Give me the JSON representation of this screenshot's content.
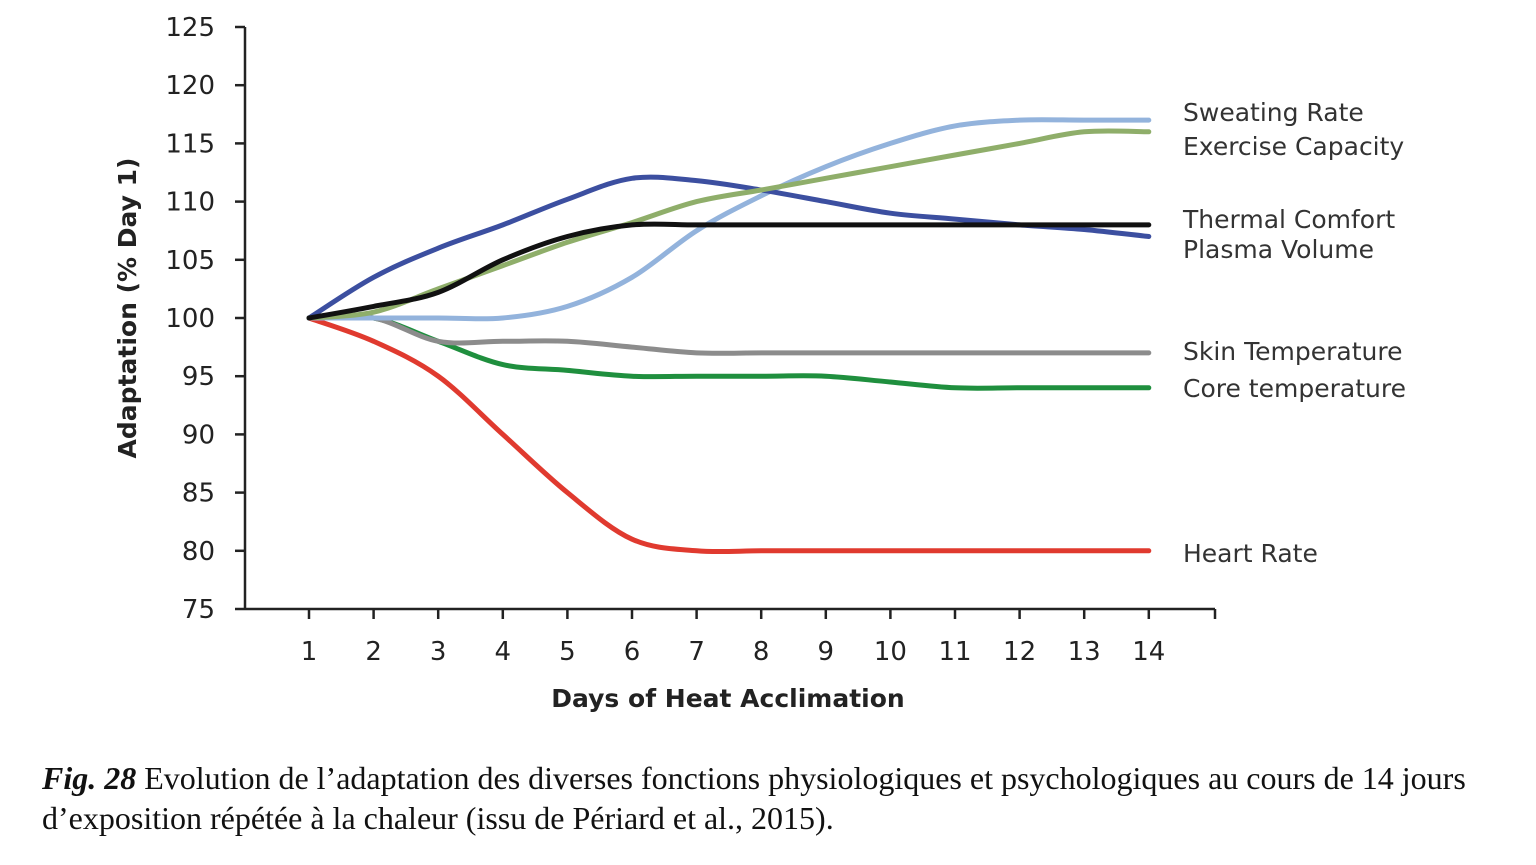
{
  "chart_data": {
    "type": "line",
    "xlabel": "Days of Heat Acclimation",
    "ylabel": "Adaptation (% Day 1)",
    "x": [
      1,
      2,
      3,
      4,
      5,
      6,
      7,
      8,
      9,
      10,
      11,
      12,
      13,
      14
    ],
    "ylim": [
      75,
      125
    ],
    "yticks": [
      75,
      80,
      85,
      90,
      95,
      100,
      105,
      110,
      115,
      120,
      125
    ],
    "grid": false,
    "series": [
      {
        "name": "Sweating Rate",
        "color": "#93b3dc",
        "values": [
          100,
          100,
          100,
          100,
          101,
          103.5,
          107.5,
          110.5,
          113,
          115,
          116.5,
          117,
          117,
          117
        ]
      },
      {
        "name": "Exercise Capacity",
        "color": "#8fae6a",
        "values": [
          100,
          100.5,
          102.5,
          104.5,
          106.5,
          108.2,
          110,
          111,
          112,
          113,
          114,
          115,
          116,
          116
        ]
      },
      {
        "name": "Thermal Comfort",
        "color": "#111111",
        "values": [
          100,
          101,
          102.2,
          105,
          107,
          108,
          108,
          108,
          108,
          108,
          108,
          108,
          108,
          108
        ]
      },
      {
        "name": "Plasma Volume",
        "color": "#3c4fa0",
        "values": [
          100,
          103.5,
          106,
          108,
          110.2,
          112,
          111.8,
          111,
          110,
          109,
          108.5,
          108,
          107.6,
          107
        ]
      },
      {
        "name": "Skin Temperature",
        "color": "#8c8c8c",
        "values": [
          100,
          100,
          98,
          98,
          98,
          97.5,
          97,
          97,
          97,
          97,
          97,
          97,
          97,
          97
        ]
      },
      {
        "name": "Core temperature",
        "color": "#1f8f3e",
        "values": [
          100,
          100,
          98,
          96,
          95.5,
          95,
          95,
          95,
          95,
          94.5,
          94,
          94,
          94,
          94
        ]
      },
      {
        "name": "Heart Rate",
        "color": "#e03a2f",
        "values": [
          100,
          98,
          95,
          90,
          85,
          81,
          80,
          80,
          80,
          80,
          80,
          80,
          80,
          80
        ]
      }
    ]
  },
  "caption": {
    "label": "Fig. 28",
    "text": "Evolution de l’adaptation des diverses fonctions physiologiques et psychologiques au cours de 14 jours d’exposition répétée à la chaleur (issu de Périard et al., 2015)."
  }
}
